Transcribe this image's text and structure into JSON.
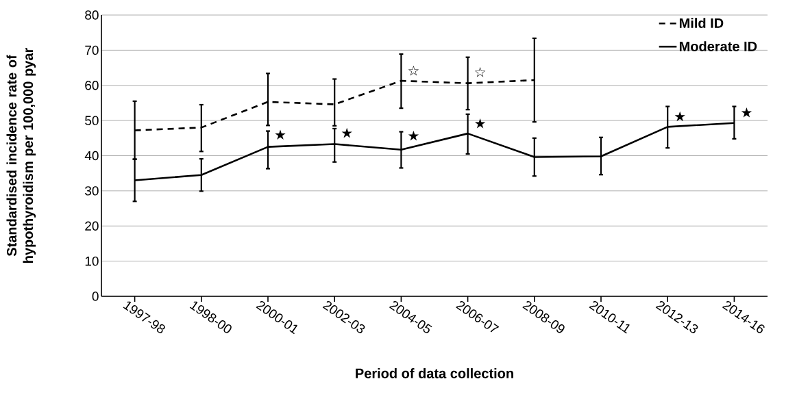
{
  "chart_data": {
    "type": "line",
    "xlabel": "Period of data collection",
    "ylabel": "Standardised incidence rate of hypothyroidism per 100,000 pyar",
    "categories": [
      "1997-98",
      "1998-00",
      "2000-01",
      "2002-03",
      "2004-05",
      "2006-07",
      "2008-09",
      "2010-11",
      "2012-13",
      "2014-16"
    ],
    "series": [
      {
        "name": "Mild ID",
        "color": "#000000",
        "line_style": "dashed",
        "values": [
          47.2,
          48.0,
          55.3,
          54.6,
          61.3,
          60.6,
          61.5,
          null,
          null,
          null
        ],
        "errors": [
          [
            39,
            55.5
          ],
          [
            41.2,
            54.5
          ],
          [
            48.6,
            63.4
          ],
          [
            48.5,
            61.8
          ],
          [
            53.5,
            68.9
          ],
          [
            53.1,
            68
          ],
          [
            49.6,
            73.4
          ],
          null,
          null,
          null
        ]
      },
      {
        "name": "Moderate ID",
        "color": "#000000",
        "line_style": "solid",
        "values": [
          33,
          34.5,
          42.5,
          43.3,
          41.7,
          46.3,
          39.6,
          39.8,
          48.2,
          49.3
        ],
        "errors": [
          [
            27,
            39
          ],
          [
            29.9,
            39.1
          ],
          [
            36.3,
            47
          ],
          [
            38.2,
            47.7
          ],
          [
            36.5,
            46.8
          ],
          [
            40.5,
            51.8
          ],
          [
            34.2,
            45
          ],
          [
            34.6,
            45.2
          ],
          [
            42.2,
            54
          ],
          [
            44.8,
            54
          ]
        ]
      }
    ],
    "annotations": [
      {
        "text": "★",
        "x": "2000-01",
        "y": 46
      },
      {
        "text": "★",
        "x": "2002-03",
        "y": 46.5
      },
      {
        "text": "★",
        "x": "2004-05",
        "y": 45.7
      },
      {
        "text": "★",
        "x": "2006-07",
        "y": 49.2
      },
      {
        "text": "★",
        "x": "2012-13",
        "y": 51.2
      },
      {
        "text": "★",
        "x": "2014-16",
        "y": 52.3
      },
      {
        "text": "☆",
        "x": "2004-05",
        "y": 64.2
      },
      {
        "text": "☆",
        "x": "2006-07",
        "y": 63.8
      }
    ],
    "ylim": [
      0,
      80
    ],
    "yticks": [
      0,
      10,
      20,
      30,
      40,
      50,
      60,
      70,
      80
    ],
    "grid": "y",
    "legend": "top right",
    "marker": "none"
  }
}
